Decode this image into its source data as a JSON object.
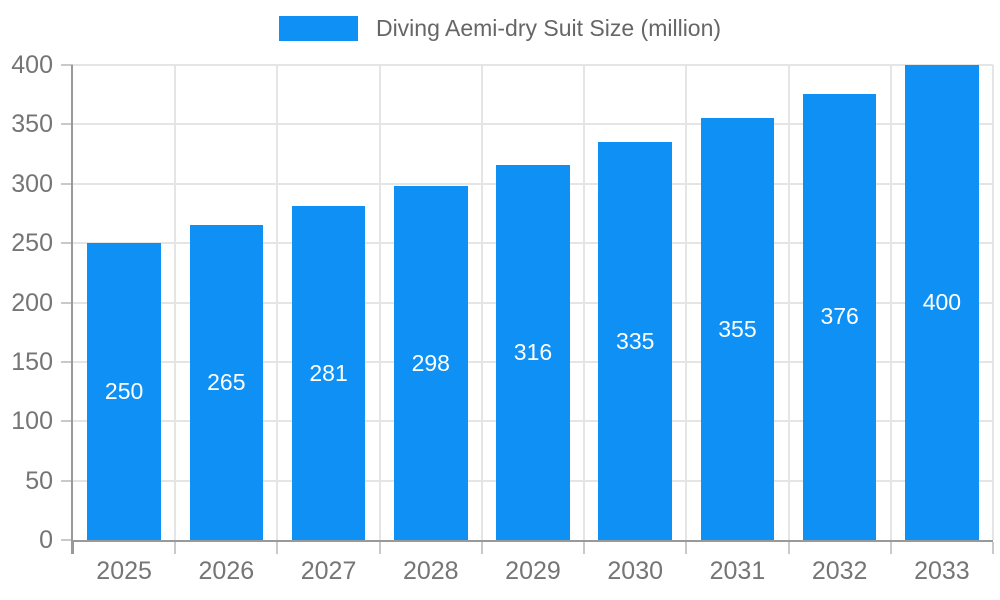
{
  "legend": {
    "label": "Diving Aemi-dry Suit Size (million)"
  },
  "chart_data": {
    "type": "bar",
    "title": "Diving Aemi-dry Suit Size (million)",
    "categories": [
      "2025",
      "2026",
      "2027",
      "2028",
      "2029",
      "2030",
      "2031",
      "2032",
      "2033"
    ],
    "values": [
      250,
      265,
      281,
      298,
      316,
      335,
      355,
      376,
      400
    ],
    "xlabel": "",
    "ylabel": "",
    "ylim": [
      0,
      400
    ],
    "ytick_step": 50,
    "ytick_labels": [
      "0",
      "50",
      "100",
      "150",
      "200",
      "250",
      "300",
      "350",
      "400"
    ],
    "grid": true,
    "legend_position": "top",
    "colors": {
      "bar": "#0e90f5",
      "bar_label": "#ffffff",
      "grid": "#e5e5e5",
      "axis": "#999999",
      "tick": "#c9c9c9",
      "tick_label": "#757575",
      "legend_text": "#666666"
    }
  }
}
